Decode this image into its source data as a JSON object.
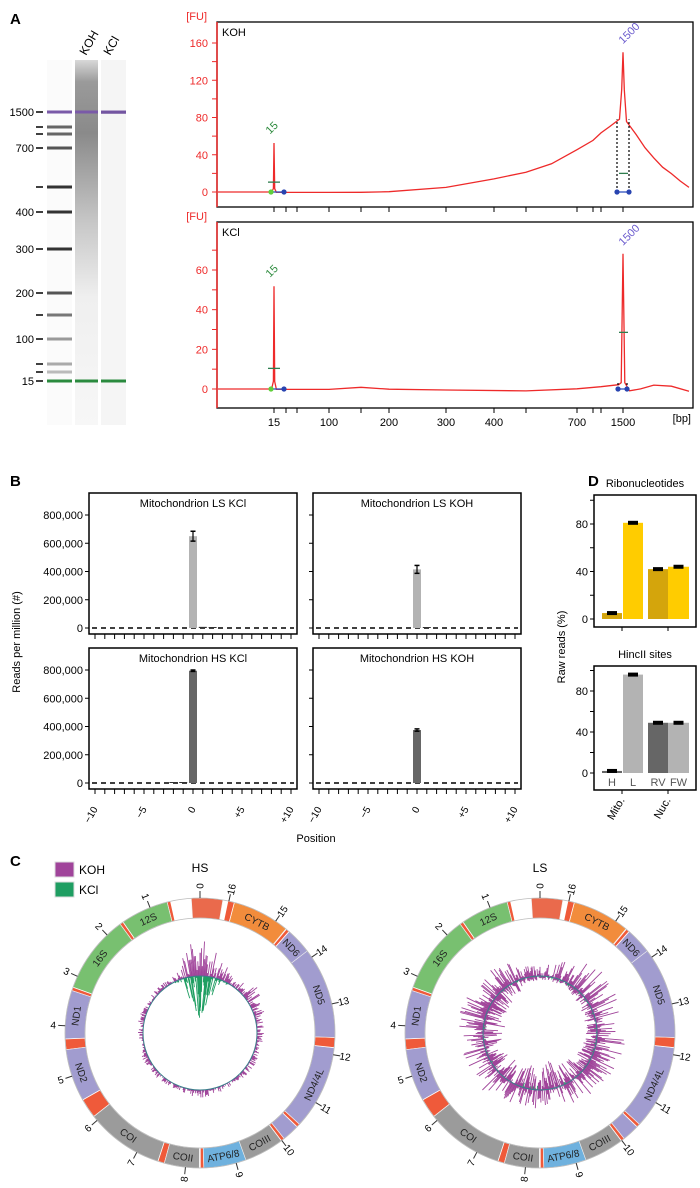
{
  "panel_labels": {
    "a": "A",
    "b": "B",
    "c": "C",
    "d": "D"
  },
  "colors": {
    "trace": "#ee2a2a",
    "marker_lower": "#2e8b3e",
    "marker_upper": "#6a5acd",
    "bar_light": "#b3b3b3",
    "bar_dark": "#666666",
    "ribo_dark": "#d4a50c",
    "ribo_light": "#ffcc00",
    "koh": "#a0449a",
    "kcl": "#1f9e62"
  },
  "chart_data": [
    {
      "type": "gel",
      "lanes": [
        "KOH",
        "KCl"
      ],
      "ladder": [
        {
          "bp": 1500,
          "label": "1500"
        },
        {
          "bp": 1000,
          "label": ""
        },
        {
          "bp": 850,
          "label": ""
        },
        {
          "bp": 700,
          "label": "700"
        },
        {
          "bp": 500,
          "label": ""
        },
        {
          "bp": 400,
          "label": "400"
        },
        {
          "bp": 300,
          "label": "300"
        },
        {
          "bp": 200,
          "label": "200"
        },
        {
          "bp": 150,
          "label": ""
        },
        {
          "bp": 100,
          "label": "100"
        },
        {
          "bp": 50,
          "label": ""
        },
        {
          "bp": 25,
          "label": ""
        },
        {
          "bp": 15,
          "label": "15"
        }
      ],
      "lane_smear": {
        "KOH": "high-molecular-weight smear",
        "KCl": "none"
      }
    },
    {
      "type": "line",
      "title": "KOH",
      "ylabel": "[FU]",
      "xlabel": "[bp]",
      "yticks": [
        0,
        40,
        80,
        120,
        160
      ],
      "ylim": [
        -10,
        170
      ],
      "xtick_labels": [
        "15",
        "100",
        "200",
        "300",
        "400",
        "700",
        "1500"
      ],
      "xticks_bp": [
        15,
        25,
        50,
        100,
        150,
        200,
        300,
        400,
        500,
        700,
        850,
        1000,
        1500
      ],
      "peaks": [
        {
          "label": "15",
          "bp": 15,
          "fu": 53
        },
        {
          "label": "1500",
          "bp": 1500,
          "fu": 150
        }
      ],
      "profile": [
        [
          13,
          0
        ],
        [
          14.5,
          4
        ],
        [
          15,
          53
        ],
        [
          15.6,
          4
        ],
        [
          17,
          0
        ],
        [
          100,
          0
        ],
        [
          150,
          0
        ],
        [
          200,
          0.5
        ],
        [
          300,
          5
        ],
        [
          400,
          14
        ],
        [
          500,
          21
        ],
        [
          600,
          30
        ],
        [
          700,
          45
        ],
        [
          850,
          55
        ],
        [
          1000,
          63
        ],
        [
          1200,
          70
        ],
        [
          1420,
          78
        ],
        [
          1470,
          110
        ],
        [
          1500,
          150
        ],
        [
          1530,
          110
        ],
        [
          1580,
          76
        ],
        [
          1800,
          62
        ],
        [
          2000,
          48
        ],
        [
          2200,
          37
        ],
        [
          2400,
          27
        ],
        [
          2600,
          20
        ],
        [
          2800,
          12
        ],
        [
          3000,
          5
        ]
      ]
    },
    {
      "type": "line",
      "title": "KCl",
      "ylabel": "[FU]",
      "xlabel": "[bp]",
      "yticks": [
        0,
        20,
        40,
        60
      ],
      "ylim": [
        -5,
        75
      ],
      "xtick_labels": [
        "15",
        "100",
        "200",
        "300",
        "400",
        "700",
        "1500"
      ],
      "xticks_bp": [
        15,
        25,
        50,
        100,
        150,
        200,
        300,
        400,
        500,
        700,
        850,
        1000,
        1500
      ],
      "peaks": [
        {
          "label": "15",
          "bp": 15,
          "fu": 52
        },
        {
          "label": "1500",
          "bp": 1500,
          "fu": 68
        }
      ],
      "profile": [
        [
          13,
          0
        ],
        [
          14.5,
          4
        ],
        [
          15,
          52
        ],
        [
          15.6,
          4
        ],
        [
          17,
          0
        ],
        [
          100,
          0
        ],
        [
          150,
          1
        ],
        [
          200,
          0
        ],
        [
          300,
          -0.5
        ],
        [
          500,
          -1
        ],
        [
          700,
          0
        ],
        [
          1000,
          1
        ],
        [
          1400,
          2
        ],
        [
          1460,
          3
        ],
        [
          1500,
          68
        ],
        [
          1540,
          3
        ],
        [
          1650,
          -1
        ],
        [
          1900,
          0
        ],
        [
          2200,
          2
        ],
        [
          2600,
          1.5
        ],
        [
          3000,
          -1
        ]
      ]
    },
    {
      "type": "bar",
      "xlabel": "Position",
      "ylabel": "Reads per million (#)",
      "ylim": [
        0,
        850000
      ],
      "yticks": [
        0,
        200000,
        400000,
        600000,
        800000
      ],
      "ytick_labels": [
        "0",
        "200,000",
        "400,000",
        "600,000",
        "800,000"
      ],
      "positions": [
        -10,
        -9,
        -8,
        -7,
        -6,
        -5,
        -4,
        -3,
        -2,
        -1,
        0,
        1,
        2,
        3,
        4,
        5,
        6,
        7,
        8,
        9,
        10
      ],
      "xtick_labels": {
        "-10": "−10",
        "-5": "−5",
        "0": "0",
        "5": "+5",
        "10": "+10"
      },
      "facets": [
        {
          "title": "Mitochondrion LS KCl",
          "shade": "light",
          "values": [
            0,
            0,
            0,
            0,
            0,
            0,
            0,
            0,
            0,
            0,
            650000,
            8000,
            3000,
            0,
            0,
            0,
            0,
            0,
            0,
            0,
            0
          ],
          "error_at_0": 35000
        },
        {
          "title": "Mitochondrion LS KOH",
          "shade": "light",
          "values": [
            0,
            0,
            0,
            0,
            0,
            0,
            0,
            0,
            0,
            0,
            415000,
            1000,
            0,
            0,
            0,
            0,
            0,
            0,
            0,
            0,
            0
          ],
          "error_at_0": 28000
        },
        {
          "title": "Mitochondrion HS KCl",
          "shade": "dark",
          "values": [
            0,
            0,
            0,
            0,
            0,
            0,
            0,
            0,
            2500,
            3500,
            795000,
            0,
            0,
            0,
            0,
            0,
            0,
            0,
            0,
            0,
            0
          ],
          "error_at_0": 5000
        },
        {
          "title": "Mitochondrion HS KOH",
          "shade": "dark",
          "values": [
            0,
            0,
            0,
            0,
            0,
            0,
            0,
            0,
            0,
            0,
            375000,
            0,
            0,
            0,
            0,
            0,
            0,
            0,
            0,
            0,
            0
          ],
          "error_at_0": 8000
        }
      ]
    },
    {
      "type": "bar",
      "title": "Ribonucleotides",
      "ylabel": "Raw reads (%)",
      "ylim": [
        0,
        100
      ],
      "yticks": [
        0,
        40,
        80
      ],
      "groups": [
        "Mito.",
        "Nuc."
      ],
      "bars": [
        {
          "group": "Mito.",
          "label": "H",
          "value": 5,
          "error": 0.8,
          "shade": "dark"
        },
        {
          "group": "Mito.",
          "label": "L",
          "value": 81,
          "error": 0.8,
          "shade": "light"
        },
        {
          "group": "Nuc.",
          "label": "RV",
          "value": 42,
          "error": 0.8,
          "shade": "dark"
        },
        {
          "group": "Nuc.",
          "label": "FW",
          "value": 44,
          "error": 0.8,
          "shade": "light"
        }
      ]
    },
    {
      "type": "bar",
      "title": "HincII sites",
      "ylabel": "Raw reads (%)",
      "ylim": [
        0,
        100
      ],
      "yticks": [
        0,
        40,
        80
      ],
      "groups": [
        "Mito.",
        "Nuc."
      ],
      "bars": [
        {
          "group": "Mito.",
          "label": "H",
          "value": 2,
          "error": 0.6,
          "shade": "dark"
        },
        {
          "group": "Mito.",
          "label": "L",
          "value": 96,
          "error": 0.6,
          "shade": "light"
        },
        {
          "group": "Nuc.",
          "label": "RV",
          "value": 49,
          "error": 0.6,
          "shade": "dark"
        },
        {
          "group": "Nuc.",
          "label": "FW",
          "value": 49,
          "error": 0.6,
          "shade": "light"
        }
      ]
    },
    {
      "type": "circular",
      "legend": [
        {
          "label": "KOH",
          "color": "#a0449a"
        },
        {
          "label": "KCl",
          "color": "#1f9e62"
        }
      ],
      "genome_kb": 16.569,
      "ticks_kb": [
        0,
        1,
        2,
        3,
        4,
        5,
        6,
        7,
        8,
        9,
        10,
        11,
        12,
        13,
        14,
        15,
        16
      ],
      "segments": [
        {
          "name": "",
          "start": 16.12,
          "end": 16.739,
          "color": "#ea6a4c"
        },
        {
          "name": "",
          "start": 0.58,
          "end": 0.65,
          "color": "#ef5a3a"
        },
        {
          "name": "12S",
          "start": 0.65,
          "end": 1.6,
          "color": "#78c070"
        },
        {
          "name": "",
          "start": 1.6,
          "end": 1.67,
          "color": "#ef5a3a"
        },
        {
          "name": "16S",
          "start": 1.67,
          "end": 3.23,
          "color": "#78c070"
        },
        {
          "name": "",
          "start": 3.23,
          "end": 3.3,
          "color": "#ef5a3a"
        },
        {
          "name": "ND1",
          "start": 3.3,
          "end": 4.26,
          "color": "#a19ccf"
        },
        {
          "name": "",
          "start": 4.26,
          "end": 4.47,
          "color": "#ef5a3a"
        },
        {
          "name": "ND2",
          "start": 4.47,
          "end": 5.51,
          "color": "#a19ccf"
        },
        {
          "name": "",
          "start": 5.51,
          "end": 5.9,
          "color": "#ef5a3a"
        },
        {
          "name": "COI",
          "start": 5.9,
          "end": 7.45,
          "color": "#9b9b9b"
        },
        {
          "name": "",
          "start": 7.45,
          "end": 7.58,
          "color": "#ef5a3a"
        },
        {
          "name": "COII",
          "start": 7.58,
          "end": 8.27,
          "color": "#9b9b9b"
        },
        {
          "name": "",
          "start": 8.29,
          "end": 8.36,
          "color": "#ef5a3a"
        },
        {
          "name": "ATP6/8",
          "start": 8.36,
          "end": 9.2,
          "color": "#6fb1de"
        },
        {
          "name": "COIII",
          "start": 9.2,
          "end": 9.99,
          "color": "#9b9b9b"
        },
        {
          "name": "",
          "start": 9.99,
          "end": 10.06,
          "color": "#ef5a3a"
        },
        {
          "name": "",
          "start": 10.06,
          "end": 10.4,
          "color": "#a19ccf"
        },
        {
          "name": "",
          "start": 10.4,
          "end": 10.47,
          "color": "#ef5a3a"
        },
        {
          "name": "ND4/4L",
          "start": 10.47,
          "end": 12.14,
          "color": "#a19ccf"
        },
        {
          "name": "",
          "start": 12.14,
          "end": 12.34,
          "color": "#ef5a3a"
        },
        {
          "name": "ND5",
          "start": 12.34,
          "end": 14.15,
          "color": "#a19ccf"
        },
        {
          "name": "ND6",
          "start": 14.15,
          "end": 14.67,
          "color": "#a19ccf"
        },
        {
          "name": "",
          "start": 14.67,
          "end": 14.74,
          "color": "#ef5a3a"
        },
        {
          "name": "CYTB",
          "start": 14.75,
          "end": 15.89,
          "color": "#f28c3c"
        },
        {
          "name": "",
          "start": 15.89,
          "end": 16.02,
          "color": "#ef5a3a"
        }
      ],
      "plots": [
        {
          "title": "HS",
          "koh_out": [
            0.9,
            0.55,
            0.12,
            0.1,
            0.1,
            0.1,
            0.1,
            0.12,
            0.12,
            0.1,
            0.12,
            0.15,
            0.12,
            0.1,
            0.1,
            0.12,
            0.15,
            0.15,
            0.12,
            0.1,
            0.1,
            0.12,
            0.15,
            0.12,
            0.12,
            0.15,
            0.2,
            0.3,
            0.35,
            0.25,
            0.15,
            0.3,
            0.6,
            0.9
          ],
          "kcl_in": [
            1.0,
            0.8,
            0.05,
            0,
            0,
            0,
            0,
            0,
            0,
            0,
            0,
            0,
            0,
            0,
            0,
            0,
            0,
            0,
            0,
            0,
            0,
            0,
            0,
            0,
            0,
            0,
            0,
            0,
            0,
            0,
            0,
            0.1,
            0.7,
            1.0
          ]
        },
        {
          "title": "LS",
          "koh_out": [
            0.2,
            0.25,
            0.35,
            0.5,
            0.45,
            0.4,
            0.55,
            0.6,
            0.5,
            0.55,
            0.5,
            0.45,
            0.5,
            0.45,
            0.4,
            0.35,
            0.4,
            0.3,
            0.3,
            0.45,
            0.45,
            0.5,
            0.55,
            0.6,
            0.6,
            0.45,
            0.5,
            0.55,
            0.65,
            0.7,
            0.6,
            0.5,
            0.3,
            0.2
          ],
          "koh_in": [
            0.1,
            0.15,
            0.25,
            0.35,
            0.4,
            0.45,
            0.5,
            0.55,
            0.5,
            0.45,
            0.45,
            0.55,
            0.5,
            0.55,
            0.6,
            0.65,
            0.7,
            0.75,
            0.7,
            0.6,
            0.5,
            0.45,
            0.4,
            0.35,
            0.3,
            0.3,
            0.3,
            0.25,
            0.25,
            0.2,
            0.2,
            0.15,
            0.1,
            0.1
          ],
          "kcl_in": [
            0.05,
            0.05,
            0.05,
            0.05,
            0.05,
            0.05,
            0.05,
            0.05,
            0.05,
            0.05,
            0.05,
            0.05,
            0.05,
            0.05,
            0.08,
            0.1,
            0.1,
            0.08,
            0.05,
            0.05,
            0.05,
            0.05,
            0.05,
            0.05,
            0.05,
            0.05,
            0.05,
            0.05,
            0.05,
            0.05,
            0.05,
            0.05,
            0.05,
            0.05
          ]
        }
      ]
    }
  ]
}
